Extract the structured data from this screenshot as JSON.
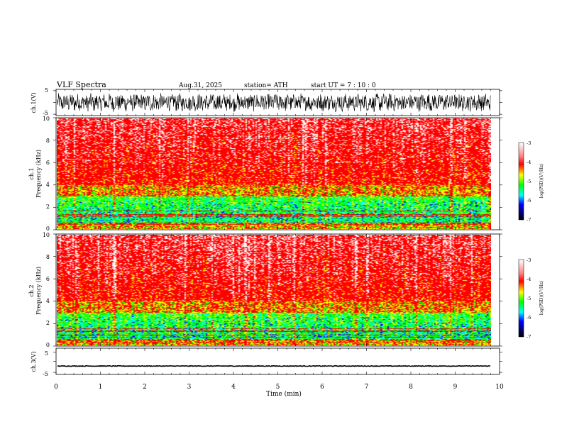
{
  "header": {
    "title": "VLF  Spectra",
    "date": "Aug.31, 2025",
    "station": "station= ATH",
    "start": "start  UT  =   7  : 10 : 0"
  },
  "colorbar": {
    "label": "log(PSD)(V²/Hz)",
    "ticks": [
      "-3",
      "-4",
      "-5",
      "-6",
      "-7"
    ],
    "colors": [
      "#ffffff",
      "#ff0000",
      "#ffff00",
      "#00ff00",
      "#00ffff",
      "#0000ff",
      "#000000"
    ]
  },
  "chart_data": [
    {
      "type": "line",
      "name": "ch1-waveform",
      "ylabel": "ch.1(V)",
      "ylim": [
        -5,
        5
      ],
      "yticks": [
        "5",
        "-5"
      ],
      "xlim": [
        0,
        10
      ],
      "description_of_values": "noisy broadband waveform, amplitude roughly ±3 V"
    },
    {
      "type": "heatmap",
      "name": "ch1-spectrogram",
      "ylabel_channel": "ch.1",
      "ylabel": "Frequency  (kHz)",
      "ylim": [
        0,
        10
      ],
      "yticks": [
        "10",
        "8",
        "6",
        "4",
        "2",
        "0"
      ],
      "xlim": [
        0,
        10
      ],
      "data_end_min": 9.8,
      "color_range": [
        -7,
        -3
      ]
    },
    {
      "type": "heatmap",
      "name": "ch2-spectrogram",
      "ylabel_channel": "ch.2",
      "ylabel": "Frequency  (kHz)",
      "ylim": [
        0,
        10
      ],
      "yticks": [
        "10",
        "8",
        "6",
        "4",
        "2",
        "0"
      ],
      "xlim": [
        0,
        10
      ],
      "data_end_min": 9.8,
      "color_range": [
        -7,
        -3
      ]
    },
    {
      "type": "line",
      "name": "ch3-waveform",
      "ylabel": "ch.3(V)",
      "ylim": [
        -5,
        5
      ],
      "yticks": [
        "5",
        "-5"
      ],
      "xlim": [
        0,
        10
      ],
      "xlabel": "Time  (min)",
      "xticks": [
        "0",
        "1",
        "2",
        "3",
        "4",
        "5",
        "6",
        "7",
        "8",
        "9",
        "10"
      ],
      "level": -1.8
    }
  ]
}
